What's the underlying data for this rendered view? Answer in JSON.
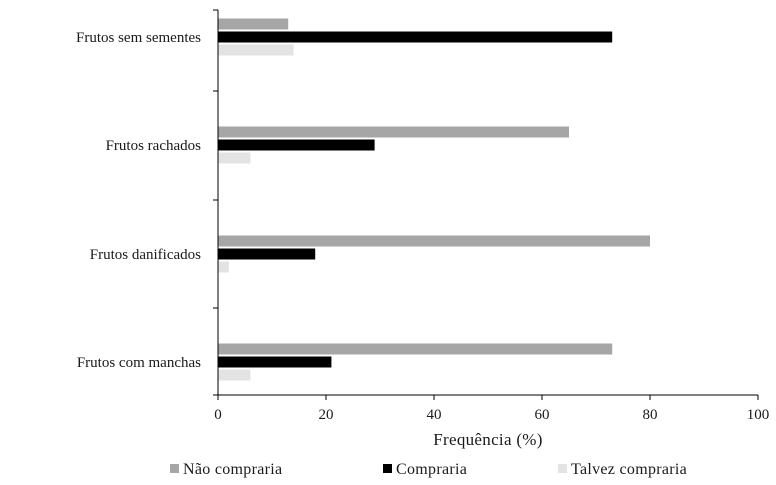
{
  "chart_data": {
    "type": "bar",
    "orientation": "horizontal",
    "categories": [
      "Frutos sem sementes",
      "Frutos rachados",
      "Frutos danificados",
      "Frutos com manchas"
    ],
    "series": [
      {
        "name": "Não compraria",
        "values": [
          13,
          65,
          80,
          73
        ],
        "color": "#a6a6a6"
      },
      {
        "name": "Compraria",
        "values": [
          73,
          29,
          18,
          21
        ],
        "color": "#000000"
      },
      {
        "name": "Talvez compraria",
        "values": [
          14,
          6,
          2,
          6
        ],
        "color": "#e3e3e3"
      }
    ],
    "xlabel": "Frequência  (%)",
    "ylabel": "",
    "xlim": [
      0,
      100
    ],
    "xticks": [
      "0",
      "20",
      "40",
      "60",
      "80",
      "100"
    ],
    "grid": false,
    "legend_position": "bottom"
  }
}
